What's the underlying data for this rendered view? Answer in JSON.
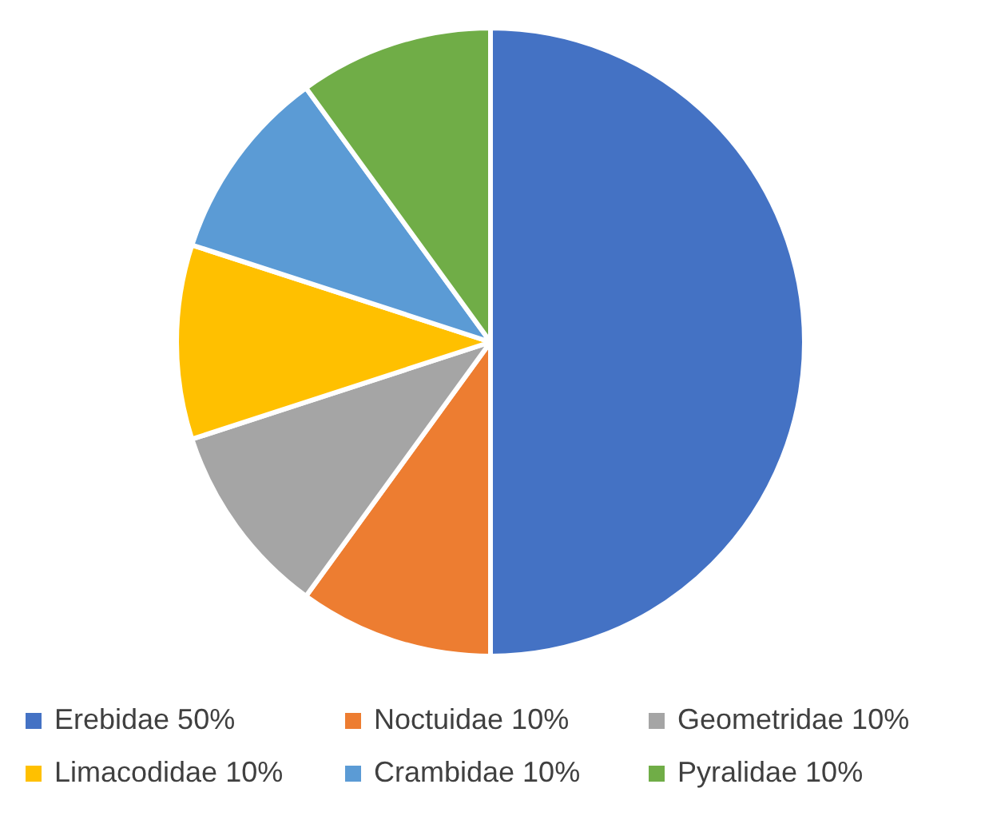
{
  "chart_data": {
    "type": "pie",
    "categories": [
      "Erebidae 50%",
      "Noctuidae 10%",
      "Geometridae 10%",
      "Limacodidae 10%",
      "Crambidae 10%",
      "Pyralidae 10%"
    ],
    "values": [
      50,
      10,
      10,
      10,
      10,
      10
    ],
    "colors": [
      "#4472c4",
      "#ed7d31",
      "#a5a5a5",
      "#ffc000",
      "#5b9bd5",
      "#70ad47"
    ],
    "legend": "bottom"
  }
}
